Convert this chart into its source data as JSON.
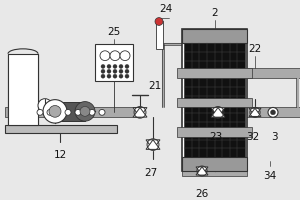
{
  "bg_color": "#e8e8e8",
  "line_color": "#333333",
  "dark_color": "#111111",
  "pipe_color": "#aaaaaa",
  "fontsize": 7.5
}
